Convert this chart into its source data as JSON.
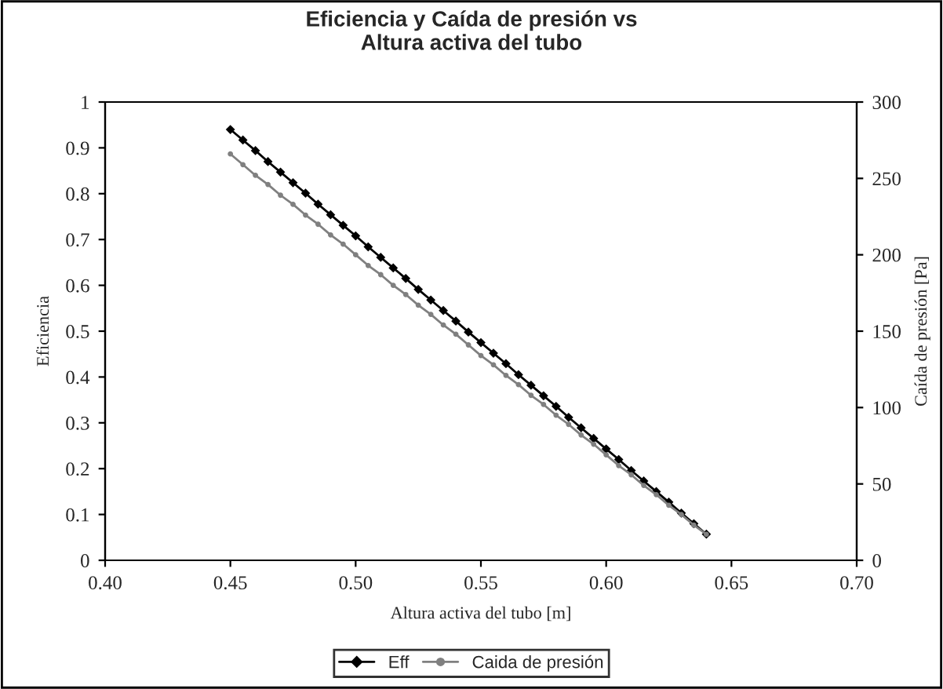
{
  "chart_data": {
    "type": "line",
    "title": "Eficiencia y Caída de presión vs\nAltura activa del tubo",
    "xlabel": "Altura activa del tubo [m]",
    "ylabel": "Eficiencia",
    "y2label": "Caída de presión [Pa]",
    "x": [
      0.45,
      0.455,
      0.46,
      0.465,
      0.47,
      0.475,
      0.48,
      0.485,
      0.49,
      0.495,
      0.5,
      0.505,
      0.51,
      0.515,
      0.52,
      0.525,
      0.53,
      0.535,
      0.54,
      0.545,
      0.55,
      0.555,
      0.56,
      0.565,
      0.57,
      0.575,
      0.58,
      0.585,
      0.59,
      0.595,
      0.6,
      0.605,
      0.61,
      0.615,
      0.62,
      0.625,
      0.63,
      0.635,
      0.64
    ],
    "series": [
      {
        "name": "Eff",
        "color": "#000000",
        "marker": "diamond",
        "values": [
          0.94,
          0.917,
          0.894,
          0.87,
          0.847,
          0.824,
          0.801,
          0.777,
          0.754,
          0.731,
          0.708,
          0.684,
          0.661,
          0.638,
          0.615,
          0.591,
          0.568,
          0.545,
          0.522,
          0.498,
          0.475,
          0.452,
          0.429,
          0.405,
          0.382,
          0.359,
          0.336,
          0.312,
          0.289,
          0.266,
          0.243,
          0.22,
          0.196,
          0.173,
          0.15,
          0.127,
          0.103,
          0.08,
          0.057
        ]
      },
      {
        "name": "Caida de presión",
        "color": "#808080",
        "marker": "circle",
        "axis": "y2",
        "values": [
          266,
          259,
          252,
          246,
          239,
          233,
          226,
          220,
          213,
          207,
          200,
          193,
          187,
          180,
          174,
          167,
          161,
          154,
          148,
          141,
          134,
          128,
          121,
          115,
          108,
          102,
          95,
          89,
          82,
          76,
          69,
          62,
          56,
          49,
          43,
          36,
          30,
          23,
          17
        ]
      }
    ],
    "xlim": [
      0.4,
      0.7
    ],
    "xticks": [
      {
        "value": 0.4,
        "label": "0.40"
      },
      {
        "value": 0.45,
        "label": "0.45"
      },
      {
        "value": 0.5,
        "label": "0.50"
      },
      {
        "value": 0.55,
        "label": "0.55"
      },
      {
        "value": 0.6,
        "label": "0.60"
      },
      {
        "value": 0.65,
        "label": "0.65"
      },
      {
        "value": 0.7,
        "label": "0.70"
      }
    ],
    "ylim": [
      0,
      1
    ],
    "yticks": [
      0,
      0.1,
      0.2,
      0.3,
      0.4,
      0.5,
      0.6,
      0.7,
      0.8,
      0.9,
      1
    ],
    "y2lim": [
      0,
      300
    ],
    "y2ticks": [
      0,
      50,
      100,
      150,
      200,
      250,
      300
    ],
    "line_style": "solid",
    "grid": false,
    "legend": "bottom"
  }
}
